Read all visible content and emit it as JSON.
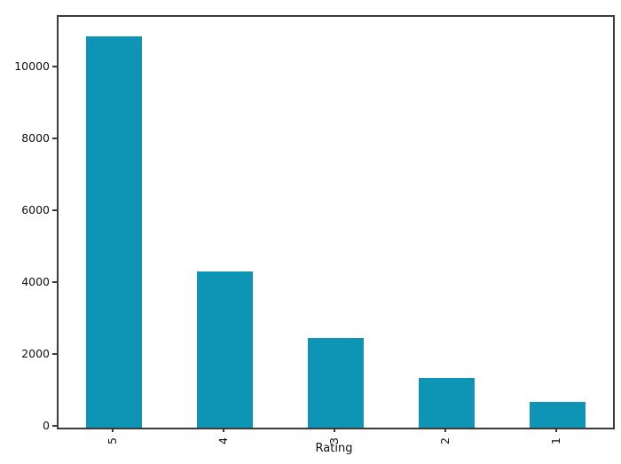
{
  "chart_data": {
    "type": "bar",
    "title": "",
    "xlabel": "Rating",
    "ylabel": "",
    "categories": [
      "5",
      "4",
      "3",
      "2",
      "1"
    ],
    "values": [
      10890,
      4350,
      2500,
      1375,
      715
    ],
    "yticks": [
      0,
      2000,
      4000,
      6000,
      8000,
      10000
    ],
    "ylim": [
      0,
      11434
    ],
    "bar_color": "#0e95b6",
    "spine_color": "#3b3b3b",
    "grid": false,
    "legend": false,
    "x_tick_rotation": 90,
    "bar_relative_width": 0.5
  }
}
